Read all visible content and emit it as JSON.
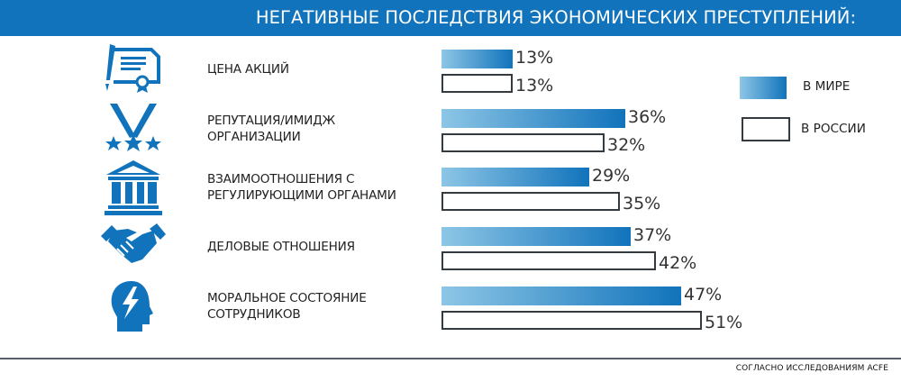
{
  "title": "НЕГАТИВНЫЕ ПОСЛЕДСТВИЯ ЭКОНОМИЧЕСКИХ ПРЕСТУПЛЕНИЙ:",
  "colors": {
    "header": "#1173bb",
    "world_start": "#8dc6e6",
    "world_end": "#1173bb",
    "russia_border": "#333a40"
  },
  "legend": {
    "world": "В МИРЕ",
    "russia": "В РОССИИ"
  },
  "source": "СОГЛАСНО ИССЛЕДОВАНИЯМ ACFE",
  "chart_data": {
    "type": "bar",
    "orientation": "horizontal",
    "title": "НЕГАТИВНЫЕ ПОСЛЕДСТВИЯ ЭКОНОМИЧЕСКИХ ПРЕСТУПЛЕНИЙ:",
    "categories": [
      {
        "lines": [
          "ЦЕНА АКЦИЙ"
        ],
        "icon": "certificate-icon"
      },
      {
        "lines": [
          "РЕПУТАЦИЯ/ИМИДЖ",
          "ОРГАНИЗАЦИИ"
        ],
        "icon": "medal-icon"
      },
      {
        "lines": [
          "ВЗАИМООТНОШЕНИЯ С",
          "РЕГУЛИРУЮЩИМИ ОРГАНАМИ"
        ],
        "icon": "government-building-icon"
      },
      {
        "lines": [
          "ДЕЛОВЫЕ ОТНОШЕНИЯ"
        ],
        "icon": "handshake-icon"
      },
      {
        "lines": [
          "МОРАЛЬНОЕ СОСТОЯНИЕ",
          "СОТРУДНИКОВ"
        ],
        "icon": "head-lightning-icon"
      }
    ],
    "series": [
      {
        "name": "В МИРЕ",
        "values": [
          13,
          36,
          29,
          37,
          47
        ],
        "labels": [
          "13%",
          "36%",
          "29%",
          "37%",
          "47%"
        ]
      },
      {
        "name": "В РОССИИ",
        "values": [
          13,
          32,
          35,
          42,
          51
        ],
        "labels": [
          "13%",
          "32%",
          "35%",
          "42%",
          "51%"
        ]
      }
    ],
    "unit": "%",
    "legend_position": "right",
    "grid": false
  }
}
